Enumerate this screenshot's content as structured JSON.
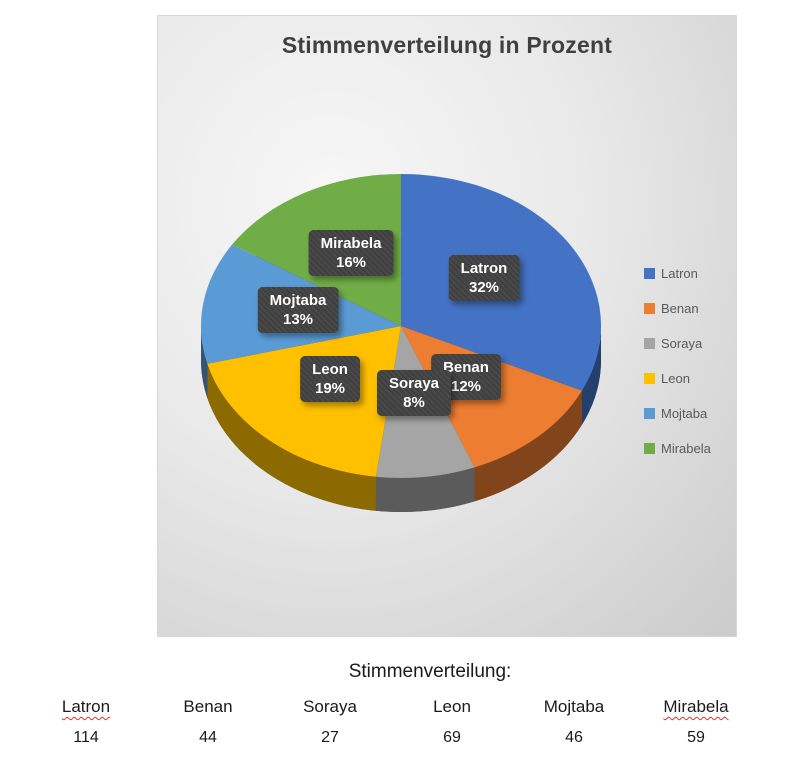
{
  "chart_data": {
    "type": "pie",
    "title": "Stimmenverteilung in Prozent",
    "categories": [
      "Latron",
      "Benan",
      "Soraya",
      "Leon",
      "Mojtaba",
      "Mirabela"
    ],
    "values_percent": [
      32,
      12,
      8,
      19,
      13,
      16
    ],
    "values_votes": [
      114,
      44,
      27,
      69,
      46,
      59
    ],
    "colors": [
      "#4472C4",
      "#ED7D31",
      "#A5A5A5",
      "#FFC000",
      "#5B9BD5",
      "#70AD47"
    ],
    "legend_position": "right",
    "start_angle_deg": -90,
    "style": "3d-pie",
    "labels": [
      {
        "name": "Latron",
        "pct": "32%"
      },
      {
        "name": "Benan",
        "pct": "12%"
      },
      {
        "name": "Soraya",
        "pct": "8%"
      },
      {
        "name": "Leon",
        "pct": "19%"
      },
      {
        "name": "Mojtaba",
        "pct": "13%"
      },
      {
        "name": "Mirabela",
        "pct": "16%"
      }
    ]
  },
  "table": {
    "heading": "Stimmenverteilung:",
    "columns": [
      {
        "name": "Latron",
        "value": "114"
      },
      {
        "name": "Benan",
        "value": "44"
      },
      {
        "name": "Soraya",
        "value": "27"
      },
      {
        "name": "Leon",
        "value": "69"
      },
      {
        "name": "Mojtaba",
        "value": "46"
      },
      {
        "name": "Mirabela",
        "value": "59"
      }
    ]
  }
}
